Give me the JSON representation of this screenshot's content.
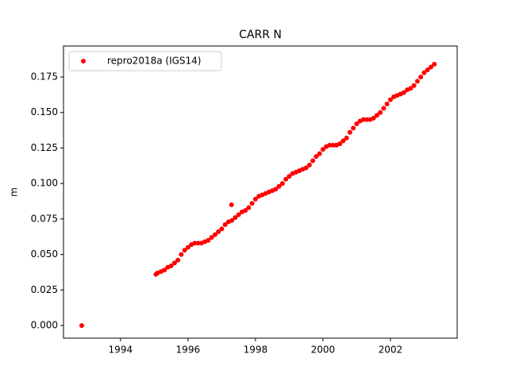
{
  "chart_data": {
    "type": "scatter",
    "title": "CARR N",
    "y_label": "m",
    "xlim": [
      1992.31,
      2003.98
    ],
    "ylim": [
      -0.0089,
      0.1968
    ],
    "xticks": [
      1994,
      1996,
      1998,
      2000,
      2002
    ],
    "yticks": [
      {
        "value": 0,
        "label": "0.000"
      },
      {
        "value": 0.025,
        "label": "0.025"
      },
      {
        "value": 0.05,
        "label": "0.050"
      },
      {
        "value": 0.075,
        "label": "0.075"
      },
      {
        "value": 0.1,
        "label": "0.100"
      },
      {
        "value": 0.125,
        "label": "0.125"
      },
      {
        "value": 0.15,
        "label": "0.150"
      },
      {
        "value": 0.175,
        "label": "0.175"
      }
    ],
    "legend": "upper left",
    "series": [
      {
        "name": "repro2018a (IGS14)",
        "color": "#ff0000",
        "x": [
          1992.85,
          1995.05,
          1995.1,
          1995.2,
          1995.3,
          1995.4,
          1995.5,
          1995.6,
          1995.7,
          1995.8,
          1995.9,
          1996.0,
          1996.1,
          1996.2,
          1996.3,
          1996.4,
          1996.5,
          1996.6,
          1996.7,
          1996.8,
          1996.9,
          1997.0,
          1997.1,
          1997.2,
          1997.29,
          1997.3,
          1997.4,
          1997.5,
          1997.6,
          1997.7,
          1997.8,
          1997.9,
          1998.0,
          1998.1,
          1998.2,
          1998.3,
          1998.4,
          1998.5,
          1998.6,
          1998.7,
          1998.8,
          1998.9,
          1999.0,
          1999.1,
          1999.2,
          1999.3,
          1999.4,
          1999.5,
          1999.6,
          1999.7,
          1999.8,
          1999.9,
          2000.0,
          2000.1,
          2000.2,
          2000.3,
          2000.4,
          2000.5,
          2000.6,
          2000.7,
          2000.8,
          2000.9,
          2001.0,
          2001.1,
          2001.2,
          2001.3,
          2001.4,
          2001.5,
          2001.6,
          2001.7,
          2001.8,
          2001.9,
          2002.0,
          2002.1,
          2002.2,
          2002.3,
          2002.4,
          2002.5,
          2002.6,
          2002.7,
          2002.8,
          2002.9,
          2003.0,
          2003.1,
          2003.2,
          2003.3
        ],
        "values": [
          0.0,
          0.036,
          0.037,
          0.038,
          0.039,
          0.041,
          0.042,
          0.044,
          0.046,
          0.05,
          0.053,
          0.055,
          0.057,
          0.058,
          0.058,
          0.058,
          0.059,
          0.06,
          0.062,
          0.064,
          0.066,
          0.068,
          0.071,
          0.073,
          0.085,
          0.074,
          0.076,
          0.078,
          0.08,
          0.081,
          0.083,
          0.086,
          0.089,
          0.091,
          0.092,
          0.093,
          0.094,
          0.095,
          0.096,
          0.098,
          0.1,
          0.103,
          0.105,
          0.107,
          0.108,
          0.109,
          0.11,
          0.111,
          0.113,
          0.116,
          0.119,
          0.121,
          0.124,
          0.126,
          0.127,
          0.127,
          0.127,
          0.128,
          0.13,
          0.132,
          0.136,
          0.139,
          0.142,
          0.144,
          0.145,
          0.145,
          0.145,
          0.146,
          0.148,
          0.15,
          0.153,
          0.156,
          0.159,
          0.161,
          0.162,
          0.163,
          0.164,
          0.166,
          0.167,
          0.169,
          0.172,
          0.175,
          0.178,
          0.18,
          0.182,
          0.184
        ]
      }
    ]
  }
}
